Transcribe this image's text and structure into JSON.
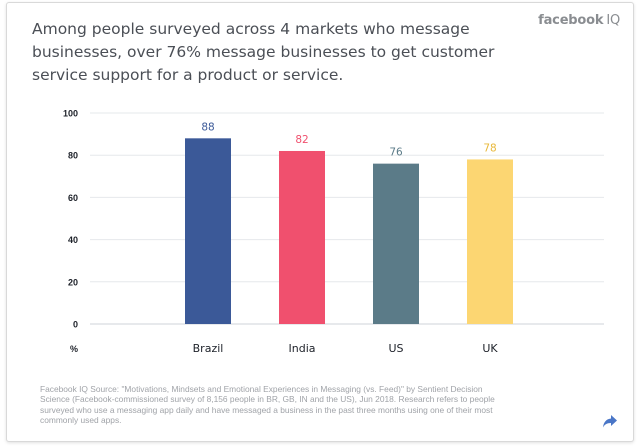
{
  "header": {
    "headline": "Among people surveyed across 4 markets who message businesses, over 76% message businesses to get customer service support for a product or service.",
    "brand_name": "facebook",
    "brand_suffix": "IQ"
  },
  "chart_data": {
    "type": "bar",
    "title": "",
    "xlabel": "",
    "ylabel": "%",
    "ylim": [
      0,
      100
    ],
    "yticks": [
      0,
      20,
      40,
      60,
      80,
      100
    ],
    "grid": true,
    "categories": [
      "Brazil",
      "India",
      "US",
      "UK"
    ],
    "values": [
      88,
      82,
      76,
      78
    ],
    "bar_colors": [
      "#3b5998",
      "#f0506e",
      "#5b7b88",
      "#fcd672"
    ],
    "data_labels": [
      "88",
      "82",
      "76",
      "78"
    ]
  },
  "footer": {
    "source": "Facebook IQ Source: \"Motivations, Mindsets and Emotional Experiences in Messaging (vs. Feed)\" by Sentient Decision Science (Facebook-commissioned survey of 8,156 people in BR, GB, IN and the US), Jun 2018. Research refers to people surveyed who use a messaging app daily and have messaged a business in the past three months using one of their most commonly used apps.",
    "share_icon": "share-icon",
    "share_color": "#4a76c7"
  }
}
